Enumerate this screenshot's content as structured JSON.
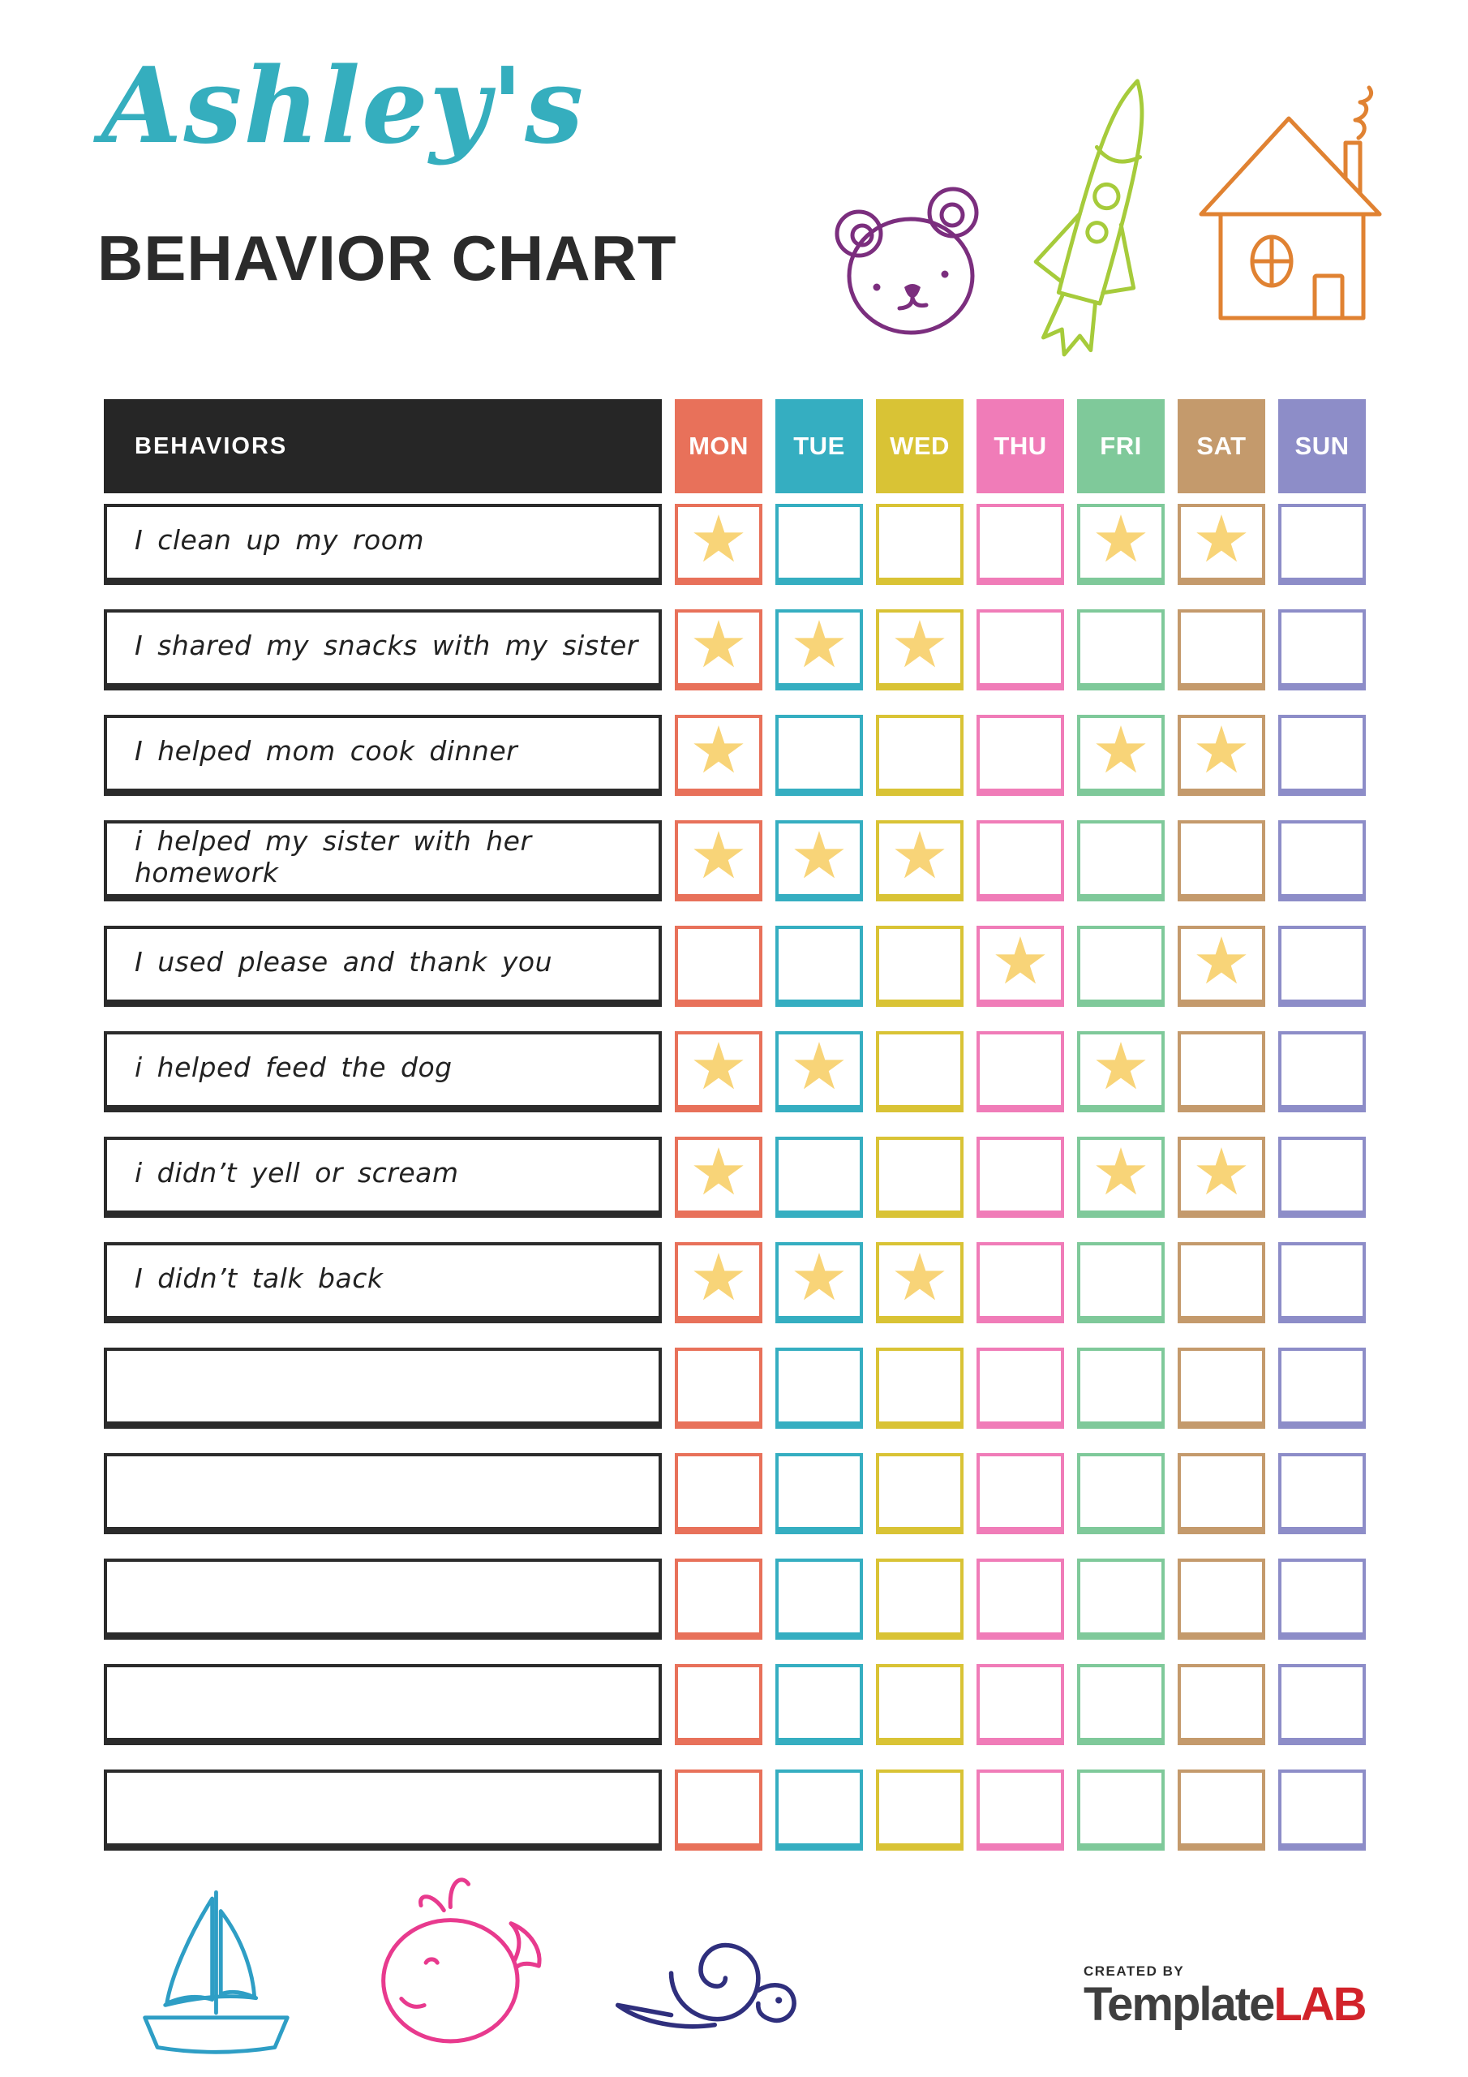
{
  "header": {
    "name": "Ashley's",
    "title": "BEHAVIOR CHART",
    "name_color": "#35AEBE",
    "title_color": "#2B2B2B"
  },
  "doodle_colors": {
    "bear": "#7B2E7E",
    "rocket": "#A6CB3B",
    "house": "#E08232",
    "sailboat": "#2E9EC5",
    "whale": "#E83A8E",
    "snail": "#2F2F7D"
  },
  "table": {
    "behaviors_header": "BEHAVIORS",
    "header_bg": "#262626",
    "header_text_color": "#FFFFFF",
    "star_color": "#F8D478",
    "star_glyph": "★",
    "days": [
      {
        "label": "MON",
        "color": "#E8715A"
      },
      {
        "label": "TUE",
        "color": "#35AEC1"
      },
      {
        "label": "WED",
        "color": "#D9C335"
      },
      {
        "label": "THU",
        "color": "#F07CB8"
      },
      {
        "label": "FRI",
        "color": "#7FC99A"
      },
      {
        "label": "SAT",
        "color": "#C49A6C"
      },
      {
        "label": "SUN",
        "color": "#8D8DC8"
      }
    ],
    "rows": [
      {
        "behavior": "I clean up my room",
        "stars": [
          "MON",
          "FRI",
          "SAT"
        ]
      },
      {
        "behavior": "I shared my snacks with my sister",
        "stars": [
          "MON",
          "TUE",
          "WED"
        ]
      },
      {
        "behavior": "I helped mom cook dinner",
        "stars": [
          "MON",
          "FRI",
          "SAT"
        ]
      },
      {
        "behavior": "i helped my sister with her homework",
        "stars": [
          "MON",
          "TUE",
          "WED"
        ]
      },
      {
        "behavior": "I used please and thank you",
        "stars": [
          "THU",
          "SAT"
        ]
      },
      {
        "behavior": "i helped feed the dog",
        "stars": [
          "MON",
          "TUE",
          "FRI"
        ]
      },
      {
        "behavior": "i didn’t yell or scream",
        "stars": [
          "MON",
          "FRI",
          "SAT"
        ]
      },
      {
        "behavior": "I didn’t talk back",
        "stars": [
          "MON",
          "TUE",
          "WED"
        ]
      },
      {
        "behavior": "",
        "stars": []
      },
      {
        "behavior": "",
        "stars": []
      },
      {
        "behavior": "",
        "stars": []
      },
      {
        "behavior": "",
        "stars": []
      },
      {
        "behavior": "",
        "stars": []
      }
    ]
  },
  "footer": {
    "created_by": "CREATED BY",
    "brand": "Template",
    "brand_suffix": "LAB",
    "brand_color": "#3F3F3F",
    "brand_suffix_color": "#D2232A"
  }
}
